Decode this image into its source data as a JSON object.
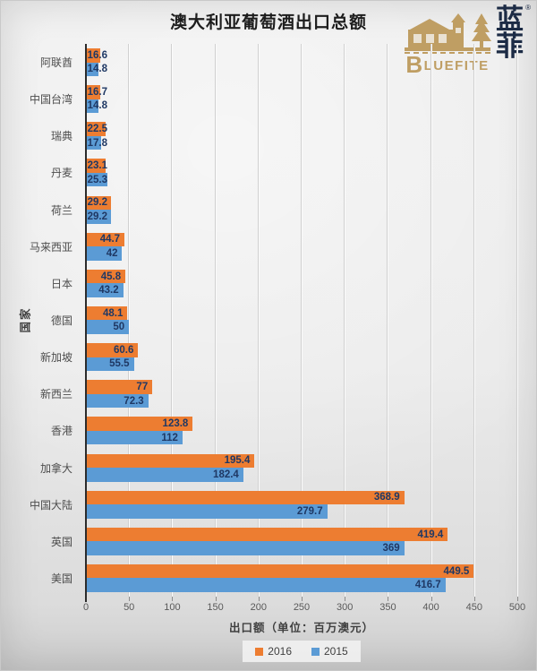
{
  "title": "澳大利亚葡萄酒出口总额",
  "logo": {
    "brand_en": "BLUEFITE",
    "brand_en_first": "B",
    "brand_en_rest": "LUEFITE",
    "brand_cn": "蓝菲",
    "brand_cn_char1": "蓝",
    "brand_cn_char2": "菲",
    "registered_mark": "®",
    "gold_color": "#bf9e63",
    "navy_color": "#1c2b45"
  },
  "chart_data": {
    "type": "bar",
    "orientation": "horizontal",
    "title": "澳大利亚葡萄酒出口总额",
    "xlabel": "出口额（单位：百万澳元）",
    "ylabel": "国家",
    "xlim": [
      0,
      500
    ],
    "xticks": [
      0,
      50,
      100,
      150,
      200,
      250,
      300,
      350,
      400,
      450,
      500
    ],
    "grid": true,
    "legend_position": "bottom",
    "categories_top_to_bottom": [
      "阿联酋",
      "中国台湾",
      "瑞典",
      "丹麦",
      "荷兰",
      "马来西亚",
      "日本",
      "德国",
      "新加坡",
      "新西兰",
      "香港",
      "加拿大",
      "中国大陆",
      "英国",
      "美国"
    ],
    "series": [
      {
        "name": "2016",
        "color": "#ED7D31",
        "values": [
          16.6,
          16.7,
          22.5,
          23.1,
          29.2,
          44.7,
          45.8,
          48.1,
          60.6,
          77,
          123.8,
          195.4,
          368.9,
          419.4,
          449.5
        ]
      },
      {
        "name": "2015",
        "color": "#5B9BD5",
        "values": [
          14.8,
          14.8,
          17.8,
          25.3,
          29.2,
          42,
          43.2,
          50,
          55.5,
          72.3,
          112,
          182.4,
          279.7,
          369,
          416.7
        ]
      }
    ],
    "data_label_color": "#1f3864",
    "axis_line_color": "#2b2b2b"
  }
}
